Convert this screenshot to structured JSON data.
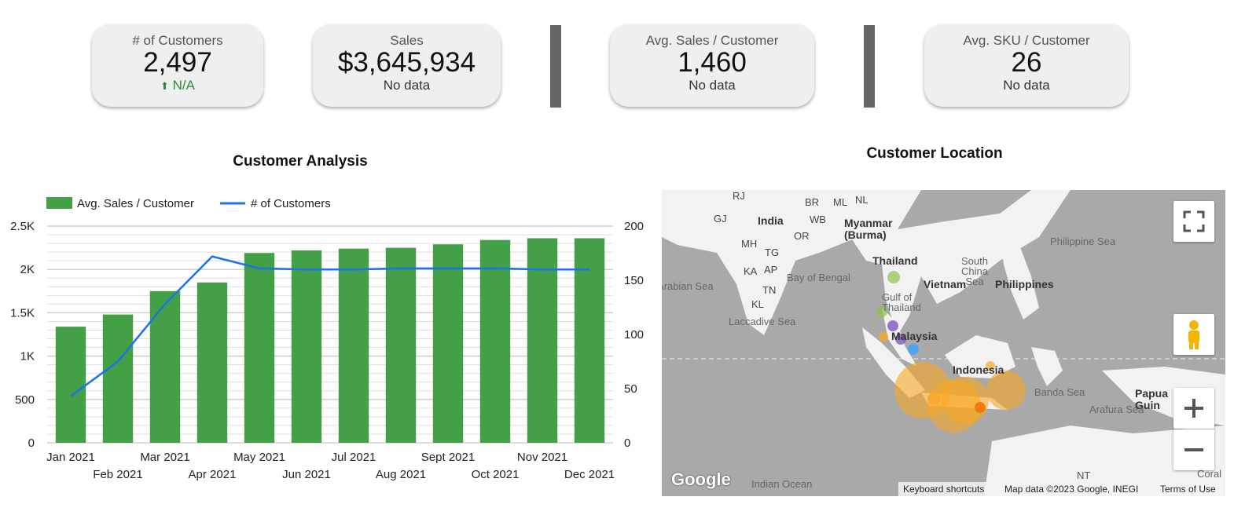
{
  "kpis": [
    {
      "label": "# of Customers",
      "value": "2,497",
      "sub": "N/A",
      "sub_arrow": "up-arrow-icon"
    },
    {
      "label": "Sales",
      "value": "$3,645,934",
      "sub": "No data"
    },
    {
      "label": "Avg. Sales / Customer",
      "value": "1,460",
      "sub": "No data"
    },
    {
      "label": "Avg. SKU / Customer",
      "value": "26",
      "sub": "No data"
    }
  ],
  "colors": {
    "bar": "#43a047",
    "line": "#1a73e8",
    "kpi_bg": "#efefef",
    "separator": "#666666",
    "positive": "#2e8b3d"
  },
  "chart_data": {
    "type": "bar",
    "title": "Customer Analysis",
    "categories": [
      "Jan 2021",
      "Feb 2021",
      "Mar 2021",
      "Apr 2021",
      "May 2021",
      "Jun 2021",
      "Jul 2021",
      "Aug 2021",
      "Sept 2021",
      "Oct 2021",
      "Nov 2021",
      "Dec 2021"
    ],
    "series": [
      {
        "name": "Avg. Sales / Customer",
        "type": "bar",
        "axis": "left",
        "values": [
          1340,
          1480,
          1750,
          1850,
          2190,
          2220,
          2240,
          2250,
          2290,
          2340,
          2360,
          2360
        ]
      },
      {
        "name": "# of Customers",
        "type": "line",
        "axis": "right",
        "values": [
          43,
          75,
          128,
          172,
          161,
          160,
          160,
          161,
          161,
          161,
          160,
          160
        ]
      }
    ],
    "y_left": {
      "ticks": [
        0,
        500,
        1000,
        1500,
        2000,
        2500
      ],
      "tick_labels": [
        "0",
        "500",
        "1K",
        "1.5K",
        "2K",
        "2.5K"
      ],
      "lim": [
        0,
        2500
      ]
    },
    "y_right": {
      "ticks": [
        0,
        50,
        100,
        150,
        200
      ],
      "tick_labels": [
        "0",
        "50",
        "100",
        "150",
        "200"
      ],
      "lim": [
        0,
        200
      ]
    },
    "legend": "top-left",
    "grid": true
  },
  "map": {
    "title": "Customer Location",
    "labels": {
      "countries": [
        "India",
        "Myanmar (Burma)",
        "Thailand",
        "Vietnam",
        "Philippines",
        "Malaysia",
        "Indonesia",
        "Papua Guin"
      ],
      "small": [
        "RJ",
        "GJ",
        "MH",
        "KA",
        "KL",
        "TN",
        "AP",
        "OR",
        "TG",
        "BR",
        "WB",
        "ML",
        "NL"
      ],
      "seas": [
        "Arabian Sea",
        "Bay of Bengal",
        "Laccadive Sea",
        "Gulf of Thailand",
        "South China Sea",
        "Philippine Sea",
        "Banda Sea",
        "Arafura Sea",
        "Indian Ocean",
        "Coral",
        "NT"
      ]
    },
    "attribution": {
      "keyboard": "Keyboard shortcuts",
      "data": "Map data ©2023 Google, INEGI",
      "terms": "Terms of Use"
    },
    "logo": "Google",
    "controls": [
      "fullscreen-icon",
      "pegman-icon",
      "zoom-in-icon",
      "zoom-out-icon"
    ]
  }
}
